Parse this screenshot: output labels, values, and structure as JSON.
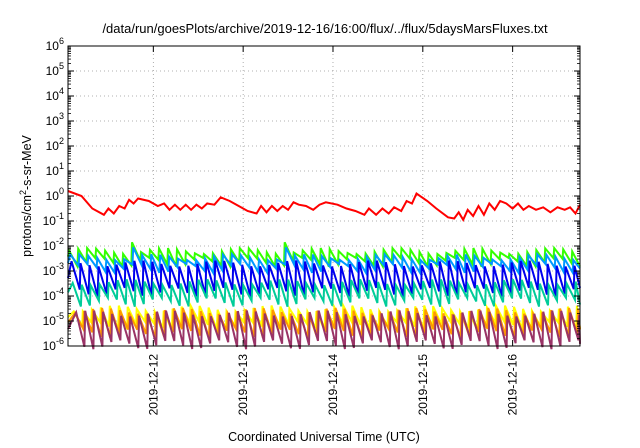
{
  "chart_data": {
    "type": "line",
    "title": "/data/run/goesPlots/archive/2019-12-16/16:00/flux/../flux/5daysMarsFluxes.txt",
    "xlabel": "Coordinated Universal Time (UTC)",
    "ylabel_base": "protons/cm",
    "ylabel_sup": "2",
    "ylabel_tail": "-s-sr-MeV",
    "y_scale": "log",
    "ylim_exp": [
      -6,
      6
    ],
    "y_ticks": [
      {
        "base": "10",
        "exp": "-6"
      },
      {
        "base": "10",
        "exp": "-5"
      },
      {
        "base": "10",
        "exp": "-4"
      },
      {
        "base": "10",
        "exp": "-3"
      },
      {
        "base": "10",
        "exp": "-2"
      },
      {
        "base": "10",
        "exp": "-1"
      },
      {
        "base": "10",
        "exp": "0"
      },
      {
        "base": "10",
        "exp": "1"
      },
      {
        "base": "10",
        "exp": "2"
      },
      {
        "base": "10",
        "exp": "3"
      },
      {
        "base": "10",
        "exp": "4"
      },
      {
        "base": "10",
        "exp": "5"
      },
      {
        "base": "10",
        "exp": "6"
      }
    ],
    "xlim_days": [
      11.05,
      16.75
    ],
    "x_ticks": [
      {
        "label": "2019-12-12",
        "day": 12
      },
      {
        "label": "2019-12-13",
        "day": 13
      },
      {
        "label": "2019-12-14",
        "day": 14
      },
      {
        "label": "2019-12-15",
        "day": 15
      },
      {
        "label": "2019-12-16",
        "day": 16
      }
    ],
    "grid": true,
    "legend": "none",
    "series": [
      {
        "color": "#ff0000",
        "log_points": [
          [
            11.05,
            0.2
          ],
          [
            11.2,
            0.0
          ],
          [
            11.32,
            -0.5
          ],
          [
            11.45,
            -0.75
          ],
          [
            11.5,
            -0.5
          ],
          [
            11.56,
            -0.7
          ],
          [
            11.62,
            -0.4
          ],
          [
            11.68,
            -0.5
          ],
          [
            11.73,
            -0.15
          ],
          [
            11.78,
            -0.3
          ],
          [
            11.83,
            -0.1
          ],
          [
            11.95,
            -0.2
          ],
          [
            12.05,
            -0.4
          ],
          [
            12.12,
            -0.3
          ],
          [
            12.18,
            -0.55
          ],
          [
            12.24,
            -0.35
          ],
          [
            12.3,
            -0.55
          ],
          [
            12.36,
            -0.35
          ],
          [
            12.42,
            -0.55
          ],
          [
            12.48,
            -0.35
          ],
          [
            12.54,
            -0.5
          ],
          [
            12.6,
            -0.3
          ],
          [
            12.68,
            -0.35
          ],
          [
            12.75,
            -0.05
          ],
          [
            12.85,
            -0.2
          ],
          [
            12.95,
            -0.4
          ],
          [
            13.05,
            -0.6
          ],
          [
            13.15,
            -0.7
          ],
          [
            13.2,
            -0.4
          ],
          [
            13.26,
            -0.65
          ],
          [
            13.32,
            -0.4
          ],
          [
            13.38,
            -0.6
          ],
          [
            13.44,
            -0.4
          ],
          [
            13.5,
            -0.55
          ],
          [
            13.56,
            -0.25
          ],
          [
            13.62,
            -0.35
          ],
          [
            13.7,
            -0.4
          ],
          [
            13.78,
            -0.55
          ],
          [
            13.85,
            -0.35
          ],
          [
            13.92,
            -0.25
          ],
          [
            14.05,
            -0.35
          ],
          [
            14.15,
            -0.5
          ],
          [
            14.25,
            -0.6
          ],
          [
            14.35,
            -0.75
          ],
          [
            14.4,
            -0.5
          ],
          [
            14.48,
            -0.75
          ],
          [
            14.55,
            -0.5
          ],
          [
            14.62,
            -0.7
          ],
          [
            14.68,
            -0.45
          ],
          [
            14.76,
            -0.6
          ],
          [
            14.82,
            -0.2
          ],
          [
            14.88,
            -0.3
          ],
          [
            14.93,
            0.1
          ],
          [
            15.05,
            -0.2
          ],
          [
            15.15,
            -0.5
          ],
          [
            15.28,
            -0.85
          ],
          [
            15.35,
            -0.9
          ],
          [
            15.4,
            -0.65
          ],
          [
            15.45,
            -0.95
          ],
          [
            15.5,
            -0.55
          ],
          [
            15.56,
            -0.8
          ],
          [
            15.62,
            -0.4
          ],
          [
            15.68,
            -0.75
          ],
          [
            15.74,
            -0.3
          ],
          [
            15.8,
            -0.55
          ],
          [
            15.86,
            -0.2
          ],
          [
            15.93,
            -0.3
          ],
          [
            16.0,
            -0.5
          ],
          [
            16.06,
            -0.3
          ],
          [
            16.12,
            -0.55
          ],
          [
            16.18,
            -0.4
          ],
          [
            16.26,
            -0.55
          ],
          [
            16.34,
            -0.45
          ],
          [
            16.42,
            -0.65
          ],
          [
            16.5,
            -0.45
          ],
          [
            16.58,
            -0.55
          ],
          [
            16.64,
            -0.45
          ],
          [
            16.7,
            -0.7
          ],
          [
            16.75,
            -0.35
          ]
        ]
      },
      {
        "color": "#33ff00",
        "saw": {
          "hi": -2.2,
          "lo": -2.65,
          "bumps": [
            [
              11.75,
              -1.85
            ],
            [
              13.45,
              -1.85
            ]
          ]
        }
      },
      {
        "color": "#0099ff",
        "saw": {
          "hi": -2.45,
          "lo": -2.9,
          "bumps": [
            [
              11.75,
              -2.05
            ],
            [
              13.45,
              -2.05
            ]
          ]
        }
      },
      {
        "color": "#0000ee",
        "saw": {
          "hi": -2.7,
          "lo": -3.85,
          "bumps": []
        }
      },
      {
        "color": "#00cc99",
        "saw": {
          "hi": -3.45,
          "lo": -4.25,
          "bumps": []
        }
      },
      {
        "color": "#ffff00",
        "saw": {
          "hi": -4.5,
          "lo": -5.2,
          "bumps": []
        }
      },
      {
        "color": "#ff9900",
        "saw": {
          "hi": -4.6,
          "lo": -5.5,
          "bumps": []
        }
      },
      {
        "color": "#993366",
        "saw": {
          "hi": -4.7,
          "lo": -5.95,
          "bumps": []
        }
      }
    ]
  }
}
